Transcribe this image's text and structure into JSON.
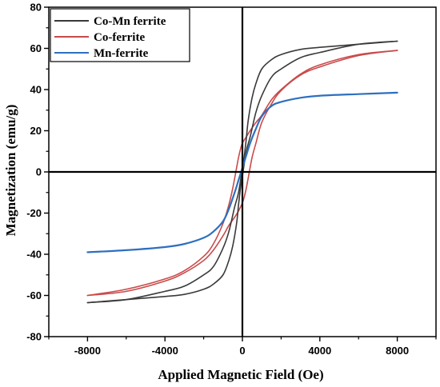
{
  "chart_data": {
    "type": "line",
    "title": "",
    "xlabel": "Applied Magnetic Field (Oe)",
    "ylabel": "Magnetization (emu/g)",
    "xlim": [
      -10000,
      10000
    ],
    "ylim": [
      -80,
      80
    ],
    "xticks": [
      "-8000",
      "-4000",
      "0",
      "4000",
      "8000"
    ],
    "xtick_values": [
      -8000,
      -4000,
      0,
      4000,
      8000
    ],
    "yticks": [
      "-80",
      "-60",
      "-40",
      "-20",
      "0",
      "20",
      "40",
      "60",
      "80"
    ],
    "ytick_values": [
      -80,
      -60,
      -40,
      -20,
      0,
      20,
      40,
      60,
      80
    ],
    "grid": false,
    "legend_position": "top-left",
    "series": [
      {
        "name": "Co-Mn ferrite",
        "color": "#3a3a3a",
        "loop": "hysteresis",
        "upper_branch": {
          "x": [
            8000,
            6000,
            4000,
            3000,
            2000,
            1500,
            1000,
            700,
            400,
            200,
            0,
            -100,
            -200,
            -300,
            -500,
            -700,
            -1000,
            -1500,
            -2000,
            -3000,
            -4000,
            -6000,
            -8000
          ],
          "y": [
            63.5,
            62,
            58,
            55.5,
            50,
            46,
            37,
            29,
            17,
            10,
            -2,
            -8,
            -16,
            -25,
            -36,
            -43,
            -50,
            -54.5,
            -57,
            -59.5,
            -60.5,
            -62,
            -63.5
          ]
        },
        "lower_branch": {
          "x": [
            -8000,
            -6000,
            -4000,
            -3000,
            -2000,
            -1500,
            -1000,
            -700,
            -400,
            -200,
            0,
            100,
            200,
            300,
            500,
            700,
            1000,
            1500,
            2000,
            3000,
            4000,
            6000,
            8000
          ],
          "y": [
            -63.5,
            -62,
            -58,
            -55.5,
            -50,
            -46,
            -37,
            -29,
            -17,
            -10,
            2,
            8,
            16,
            25,
            36,
            43,
            50,
            54.5,
            57,
            59.5,
            60.5,
            62,
            63.5
          ]
        }
      },
      {
        "name": "Co-ferrite",
        "color": "#c94a4a",
        "loop": "hysteresis",
        "upper_branch": {
          "x": [
            8000,
            6000,
            4000,
            3000,
            2000,
            1500,
            1000,
            700,
            400,
            200,
            0,
            -100,
            -200,
            -300,
            -500,
            -700,
            -1000,
            -1500,
            -2000,
            -3000,
            -4000,
            -6000,
            -8000
          ],
          "y": [
            59,
            57,
            52,
            47.5,
            40,
            35,
            27.5,
            24,
            20,
            17,
            14,
            11,
            7,
            2,
            -8,
            -16,
            -25,
            -35,
            -41,
            -48,
            -52,
            -57,
            -60
          ]
        },
        "lower_branch": {
          "x": [
            -8000,
            -6000,
            -4000,
            -3000,
            -2000,
            -1500,
            -1000,
            -700,
            -400,
            -200,
            0,
            100,
            200,
            300,
            500,
            700,
            1000,
            1500,
            2000,
            3000,
            4000,
            6000,
            8000
          ],
          "y": [
            -60,
            -58,
            -53,
            -49,
            -43,
            -38,
            -31,
            -26,
            -22,
            -19,
            -15,
            -12,
            -8,
            -3,
            7,
            14,
            24,
            33,
            39.5,
            47,
            51,
            56.5,
            59
          ]
        }
      },
      {
        "name": "Mn-ferrite",
        "color": "#2e6fbf",
        "loop": "single",
        "upper_branch": {
          "x": [
            -8000,
            -6000,
            -4000,
            -3000,
            -2000,
            -1500,
            -1000,
            -700,
            -400,
            -200,
            0,
            200,
            400,
            700,
            1000,
            1500,
            2000,
            3000,
            4000,
            6000,
            8000
          ],
          "y": [
            -39,
            -38,
            -36.5,
            -35,
            -32,
            -29,
            -24,
            -18,
            -10,
            -4,
            2,
            8,
            14,
            21,
            27,
            32,
            34,
            36,
            37,
            37.8,
            38.5
          ]
        },
        "lower_branch": {
          "x": [],
          "y": []
        }
      }
    ]
  }
}
